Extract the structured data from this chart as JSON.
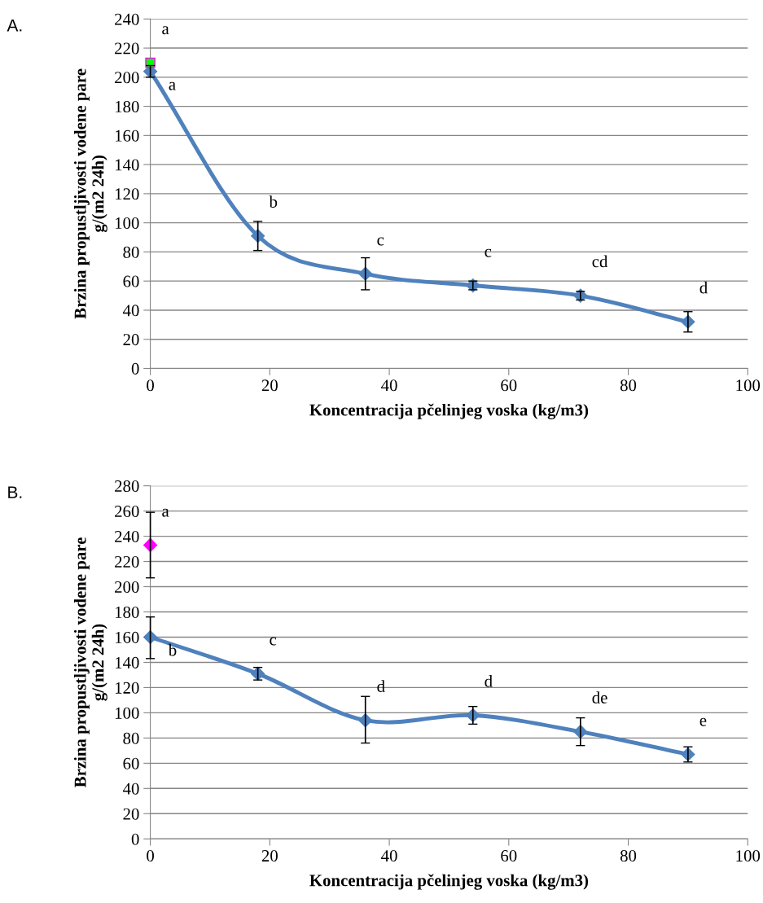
{
  "chart_data": [
    {
      "type": "line",
      "xlabel": "Koncentracija pčelinjeg voska (kg/m3)",
      "ylabel": "Brzina propustljivosti vodene pare\ng/(m2 24h)",
      "xlim": [
        0,
        100
      ],
      "xticks": [
        0,
        20,
        40,
        60,
        80,
        100
      ],
      "ylim": [
        0,
        240
      ],
      "yticks": [
        0,
        20,
        40,
        60,
        80,
        100,
        120,
        140,
        160,
        180,
        200,
        220,
        240
      ],
      "grid": "y",
      "legend": false,
      "marker": "diamond",
      "line_style": "solid",
      "series": [
        {
          "color": "#4f81bd",
          "x": [
            0,
            18,
            36,
            54,
            72,
            90
          ],
          "values": [
            204,
            91,
            65,
            57,
            50,
            32
          ],
          "errors": [
            4,
            10,
            11,
            3,
            3,
            7
          ]
        },
        {
          "type": "scatter",
          "marker": "square",
          "color": "#00ff00",
          "x": [
            0
          ],
          "values": [
            210
          ]
        }
      ],
      "annotations": [
        "A.",
        {
          "text": "a",
          "x": 0,
          "y": 210
        },
        {
          "text": "a",
          "x": 0,
          "y": 204
        },
        {
          "text": "b",
          "x": 18,
          "y": 91
        },
        {
          "text": "c",
          "x": 36,
          "y": 65
        },
        {
          "text": "c",
          "x": 54,
          "y": 57
        },
        {
          "text": "cd",
          "x": 72,
          "y": 50
        },
        {
          "text": "d",
          "x": 90,
          "y": 32
        }
      ]
    },
    {
      "type": "line",
      "xlabel": "Koncentracija pčelinjeg voska (kg/m3)",
      "ylabel": "Brzina propustljivosti vodene pare\ng/(m2 24h)",
      "xlim": [
        0,
        100
      ],
      "xticks": [
        0,
        20,
        40,
        60,
        80,
        100
      ],
      "ylim": [
        0,
        280
      ],
      "yticks": [
        0,
        20,
        40,
        60,
        80,
        100,
        120,
        140,
        160,
        180,
        200,
        220,
        240,
        260,
        280
      ],
      "grid": "y",
      "legend": false,
      "marker": "diamond",
      "line_style": "solid",
      "series": [
        {
          "color": "#4f81bd",
          "x": [
            0,
            18,
            36,
            54,
            72,
            90
          ],
          "values": [
            160,
            131,
            94,
            98,
            85,
            67
          ],
          "errors": [
            [
              143,
              176
            ],
            5,
            [
              76,
              113
            ],
            7,
            [
              74,
              96
            ],
            6
          ]
        },
        {
          "type": "scatter",
          "marker": "diamond",
          "color": "#ff00ff",
          "x": [
            0
          ],
          "values": [
            233
          ],
          "errors": [
            [
              207,
              259
            ]
          ]
        }
      ],
      "annotations": [
        "B.",
        {
          "text": "a",
          "x": 0,
          "y": 233
        },
        {
          "text": "b",
          "x": 0,
          "y": 160
        },
        {
          "text": "c",
          "x": 18,
          "y": 131
        },
        {
          "text": "d",
          "x": 36,
          "y": 94
        },
        {
          "text": "d",
          "x": 54,
          "y": 98
        },
        {
          "text": "de",
          "x": 72,
          "y": 85
        },
        {
          "text": "e",
          "x": 90,
          "y": 67
        }
      ]
    }
  ]
}
